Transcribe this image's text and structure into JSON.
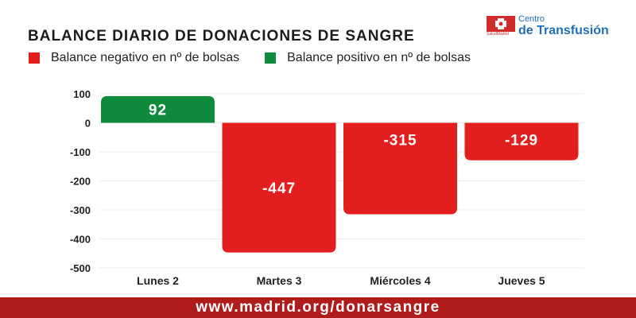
{
  "header": {
    "title": "BALANCE DIARIO DE DONACIONES DE SANGRE"
  },
  "legend": [
    {
      "label": "Balance negativo en nº de bolsas",
      "color": "#e21e1e"
    },
    {
      "label": "Balance positivo en nº de bolsas",
      "color": "#0f8a3c"
    }
  ],
  "logo": {
    "small_text": "SaludMadrid",
    "line1": "Centro",
    "line2": "de Transfusión",
    "icon": "blood-transfusion-cross-icon"
  },
  "footer": {
    "url": "www.madrid.org/donarsangre"
  },
  "colors": {
    "negative": "#e21e1e",
    "positive": "#0f8a3c",
    "footer": "#b01b1b"
  },
  "chart_data": {
    "type": "bar",
    "categories": [
      "Lunes 2",
      "Martes 3",
      "Miércoles 4",
      "Jueves 5"
    ],
    "values": [
      92,
      -447,
      -315,
      -129
    ],
    "data_labels": [
      "92",
      "-447",
      "-315",
      "-129"
    ],
    "ylim": [
      -500,
      100
    ],
    "yticks": [
      100,
      0,
      -100,
      -200,
      -300,
      -400,
      -500
    ],
    "ytick_labels": [
      "100",
      "0",
      "-100",
      "-200",
      "-300",
      "-400",
      "-500"
    ],
    "grid": true,
    "legend_position": "top-left"
  }
}
